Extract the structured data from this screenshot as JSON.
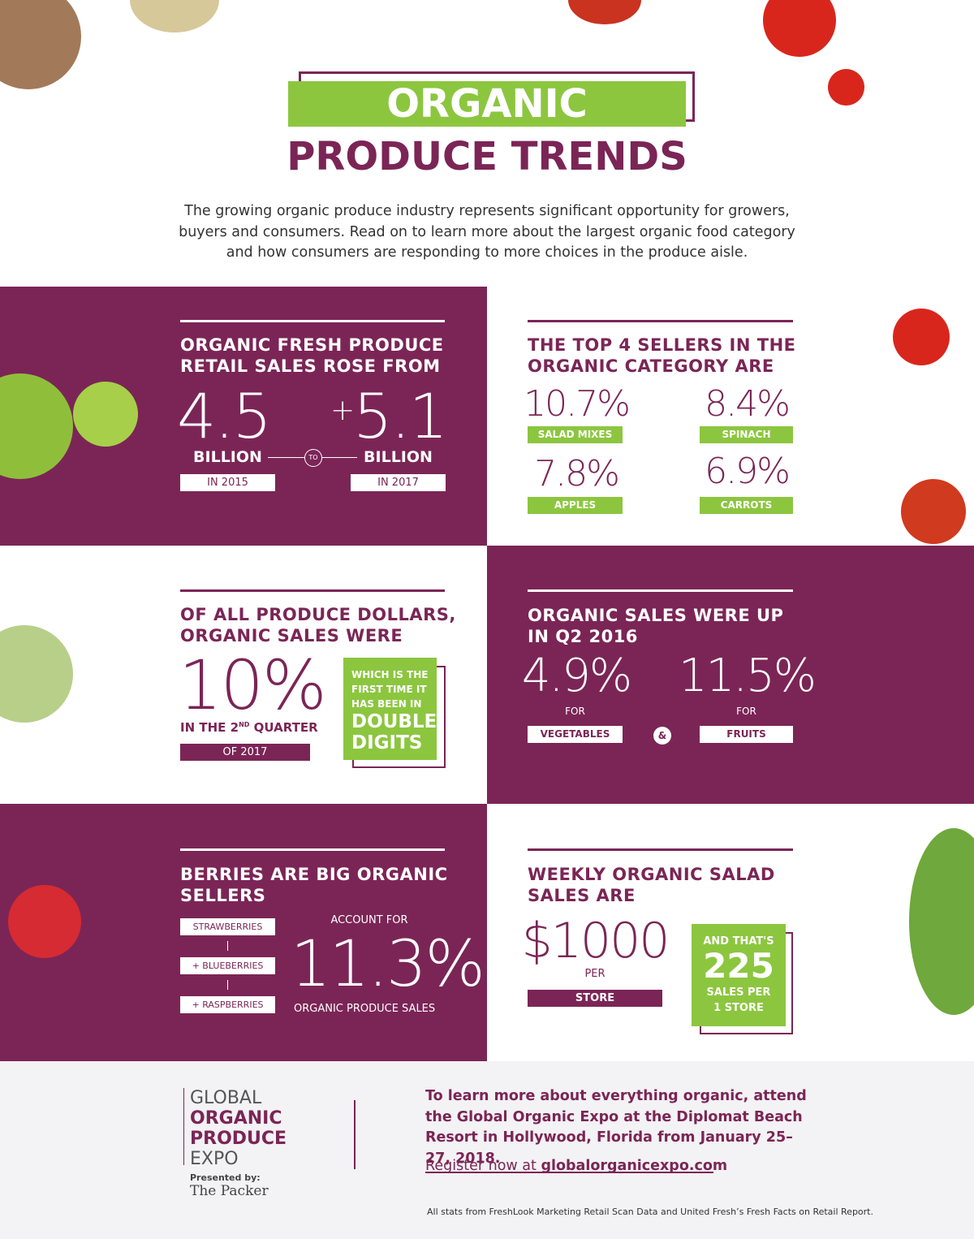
{
  "header": {
    "title_line1": "ORGANIC",
    "title_line2": "PRODUCE TRENDS",
    "intro": "The growing organic produce industry represents significant opportunity for growers, buyers and consumers. Read on to learn more about the largest organic food category and how consumers are responding to more choices in the produce aisle."
  },
  "panels": [
    {
      "heading": [
        "ORGANIC FRESH PRODUCE",
        "RETAIL SALES ROSE FROM"
      ],
      "from_value": "4.5",
      "from_unit": "BILLION",
      "from_year": "IN 2015",
      "connector": "TO",
      "to_prefix": "+",
      "to_value": "5.1",
      "to_unit": "BILLION",
      "to_year": "IN 2017"
    },
    {
      "heading": [
        "THE TOP 4 SELLERS IN THE",
        "ORGANIC CATEGORY ARE"
      ],
      "items": [
        {
          "value": "10.7%",
          "label": "SALAD MIXES"
        },
        {
          "value": "8.4%",
          "label": "SPINACH"
        },
        {
          "value": "7.8%",
          "label": "APPLES"
        },
        {
          "value": "6.9%",
          "label": "CARROTS"
        }
      ]
    },
    {
      "heading": [
        "OF ALL PRODUCE DOLLARS,",
        "ORGANIC SALES WERE"
      ],
      "value": "10%",
      "quarter_prefix": "IN THE 2",
      "quarter_sup": "ND",
      "quarter_suffix": " QUARTER",
      "year": "OF 2017",
      "note_small": "WHICH IS THE FIRST TIME IT HAS BEEN IN",
      "note_big": "DOUBLE DIGITS"
    },
    {
      "heading": [
        "ORGANIC SALES WERE UP",
        "IN Q2 2016"
      ],
      "items": [
        {
          "value": "4.9%",
          "for": "FOR",
          "label": "VEGETABLES"
        },
        {
          "value": "11.5%",
          "for": "FOR",
          "label": "FRUITS"
        }
      ],
      "connector": "&"
    },
    {
      "heading": [
        "BERRIES ARE BIG ORGANIC",
        "SELLERS"
      ],
      "berries": [
        "STRAWBERRIES",
        "+ BLUEBERRIES",
        "+ RASPBERRIES"
      ],
      "lead": "ACCOUNT FOR",
      "value": "11.3%",
      "caption": "ORGANIC PRODUCE SALES"
    },
    {
      "heading": [
        "WEEKLY ORGANIC SALAD",
        "SALES ARE"
      ],
      "value": "$1000",
      "per": "PER",
      "unit": "STORE",
      "note_lead": "AND THAT'S",
      "note_value": "225",
      "note_tail": "SALES PER 1 STORE"
    }
  ],
  "footer": {
    "logo_lines": [
      "GLOBAL",
      "ORGANIC",
      "PRODUCE",
      "EXPO"
    ],
    "presented_by": "Presented by:",
    "presenter": "The Packer",
    "cta": "To learn more about everything organic, attend the Global Organic Expo at the Diplomat Beach Resort in Hollywood, Florida from January 25–27, 2018.",
    "register_lead": "Register now at",
    "register_url": "globalorganicexpo.com",
    "source": "All stats from FreshLook Marketing Retail Scan Data and United Fresh’s Fresh Facts on Retail Report."
  }
}
